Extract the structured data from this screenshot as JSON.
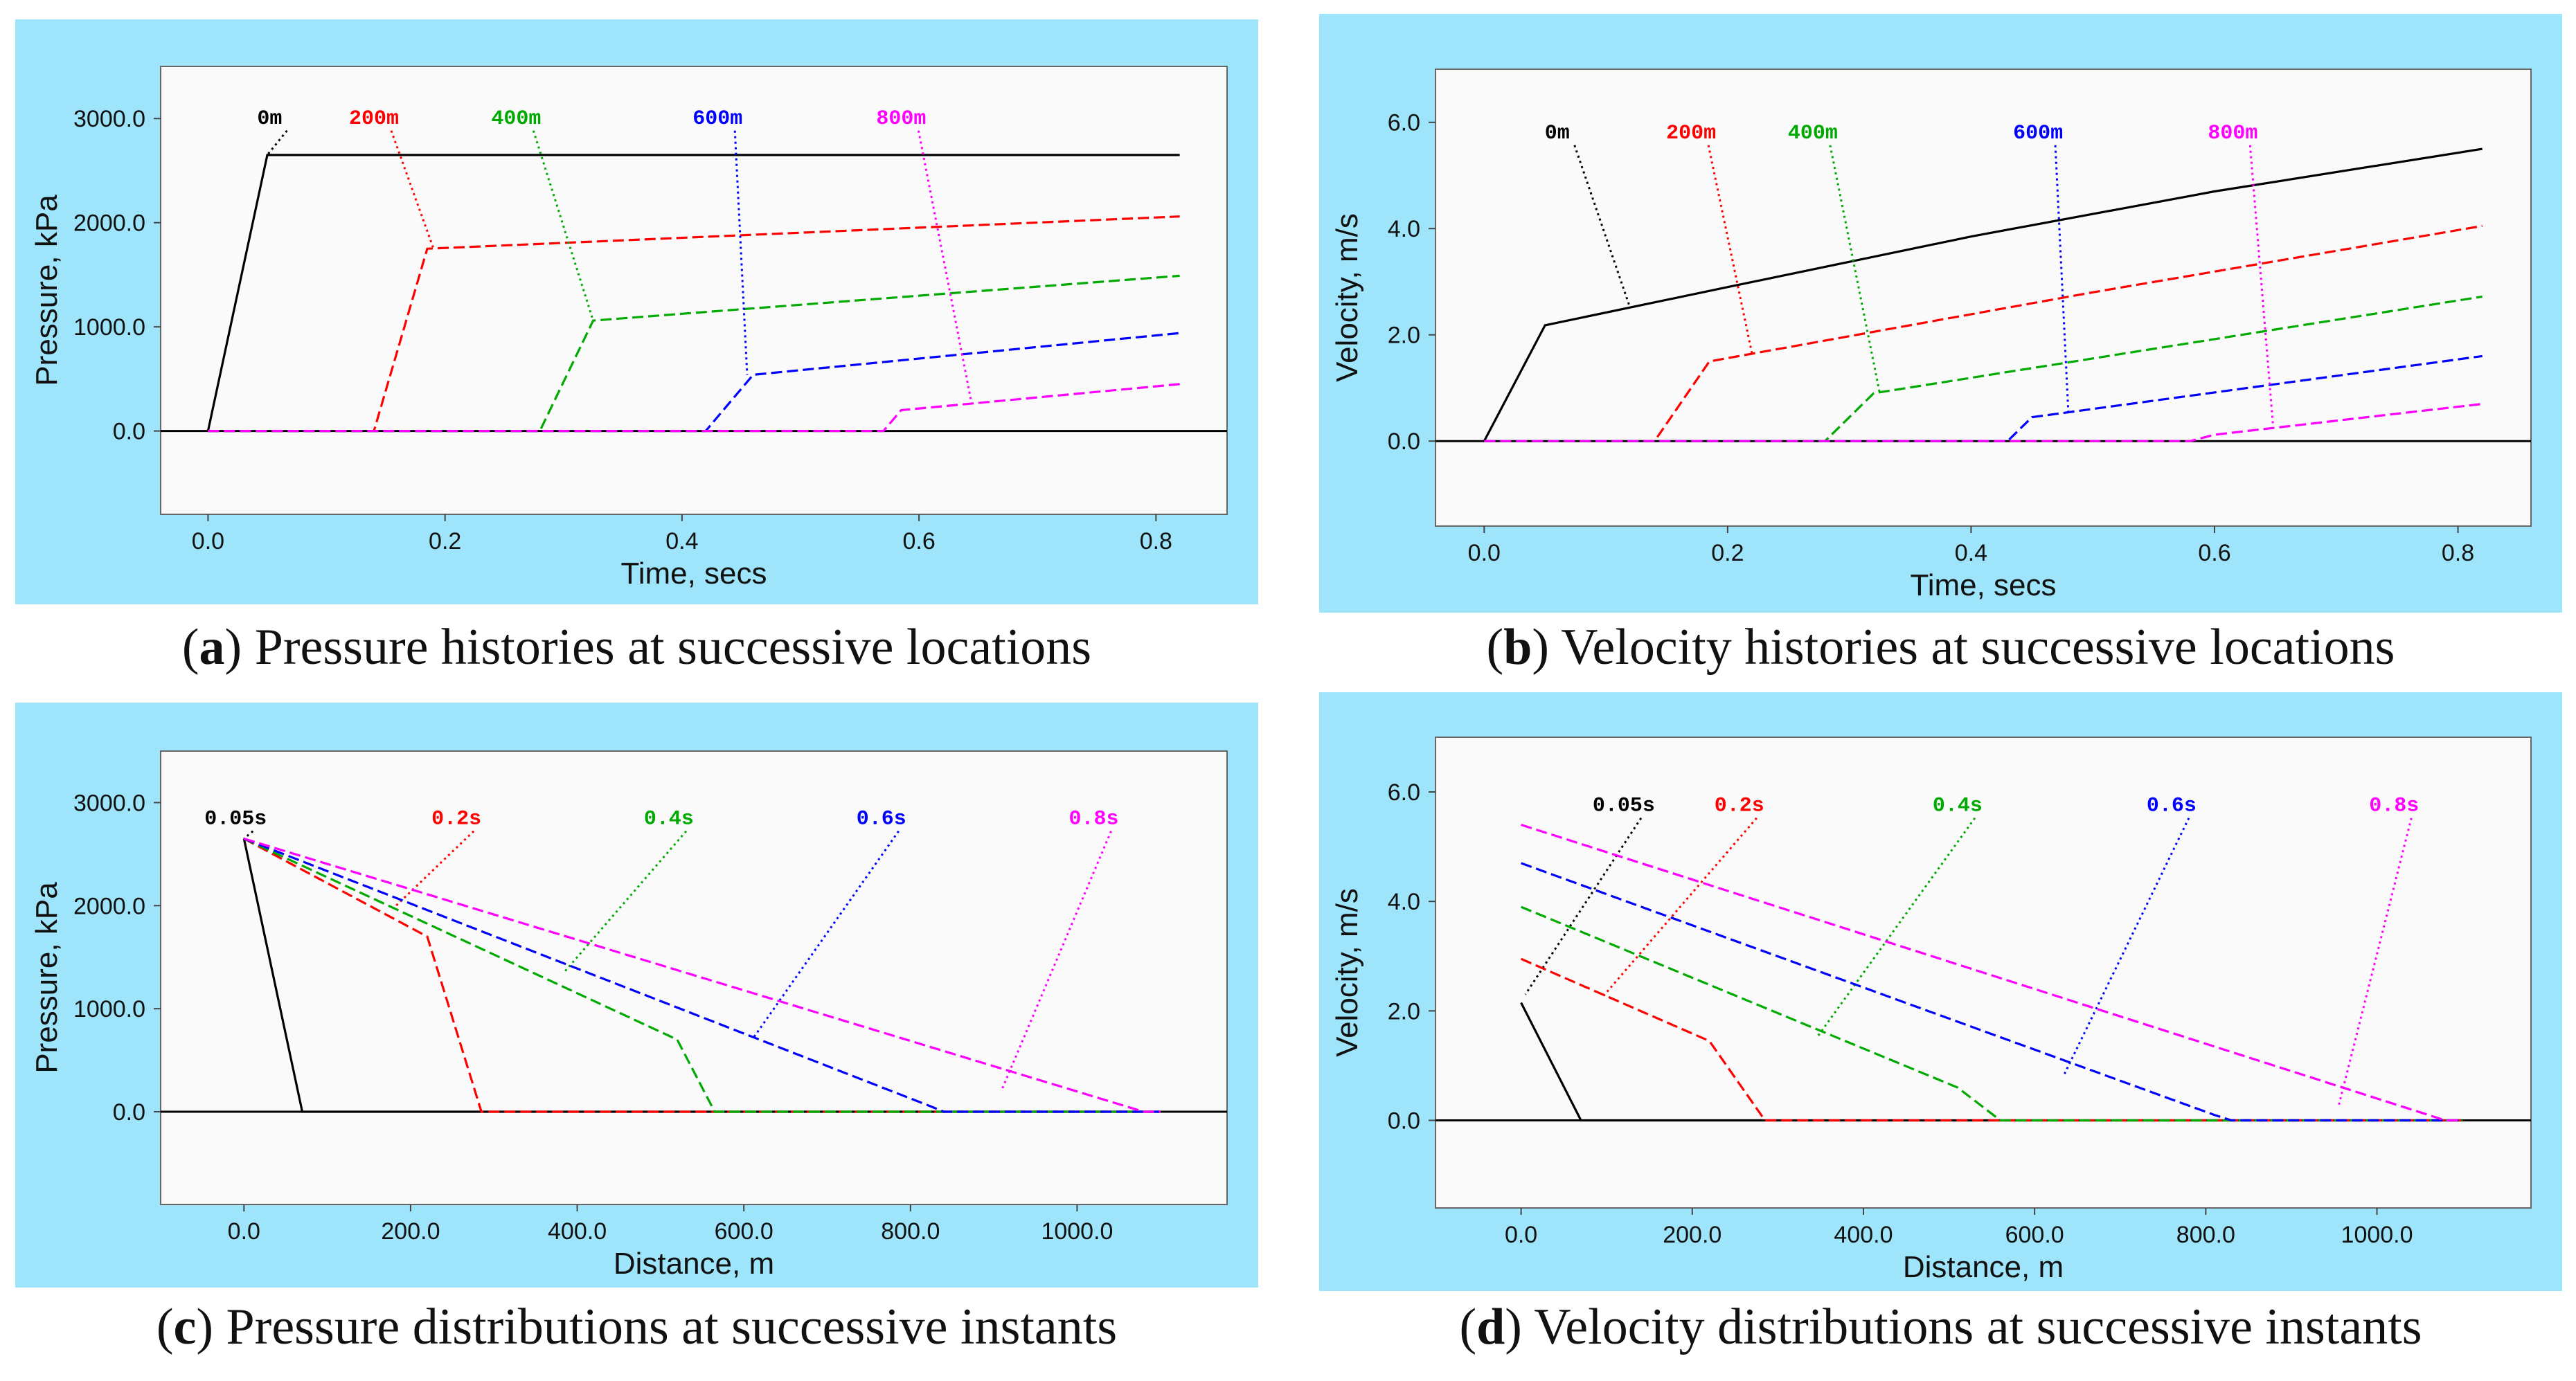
{
  "captions": [
    {
      "letter": "a",
      "text": "Pressure histories at successive locations"
    },
    {
      "letter": "b",
      "text": "Velocity histories at successive locations"
    },
    {
      "letter": "c",
      "text": "Pressure distributions at successive instants"
    },
    {
      "letter": "d",
      "text": "Velocity distributions at successive instants"
    }
  ],
  "chart_data": [
    {
      "id": "a",
      "type": "line",
      "title": "",
      "xlabel": "Time, secs",
      "ylabel": "Pressure, kPa",
      "xlim": [
        -0.04,
        0.86
      ],
      "ylim": [
        -800,
        3500
      ],
      "xticks": [
        0.0,
        0.2,
        0.4,
        0.6,
        0.8
      ],
      "xtick_labels": [
        "0.0",
        "0.2",
        "0.4",
        "0.6",
        "0.8"
      ],
      "yticks": [
        0,
        1000,
        2000,
        3000
      ],
      "ytick_labels": [
        "0.0",
        "1000.0",
        "2000.0",
        "3000.0"
      ],
      "grid": false,
      "legend": "none",
      "series": [
        {
          "name": "0m",
          "color": "#000000",
          "dash": "solid",
          "points": [
            [
              0.0,
              0
            ],
            [
              0.05,
              2650
            ],
            [
              0.82,
              2650
            ]
          ],
          "label_at": [
            0.052,
            2950
          ],
          "leader_to": [
            0.05,
            2650
          ]
        },
        {
          "name": "200m",
          "color": "#ff0000",
          "dash": "long",
          "points": [
            [
              0.0,
              0
            ],
            [
              0.14,
              0
            ],
            [
              0.185,
              1750
            ],
            [
              0.82,
              2060
            ]
          ],
          "label_at": [
            0.14,
            2950
          ],
          "leader_to": [
            0.19,
            1760
          ]
        },
        {
          "name": "400m",
          "color": "#00aa00",
          "dash": "long",
          "points": [
            [
              0.0,
              0
            ],
            [
              0.28,
              0
            ],
            [
              0.325,
              1060
            ],
            [
              0.82,
              1490
            ]
          ],
          "label_at": [
            0.26,
            2950
          ],
          "leader_to": [
            0.325,
            1060
          ]
        },
        {
          "name": "600m",
          "color": "#0000ff",
          "dash": "long",
          "points": [
            [
              0.0,
              0
            ],
            [
              0.42,
              0
            ],
            [
              0.46,
              540
            ],
            [
              0.82,
              940
            ]
          ],
          "label_at": [
            0.43,
            2950
          ],
          "leader_to": [
            0.455,
            540
          ]
        },
        {
          "name": "800m",
          "color": "#ff00ff",
          "dash": "long",
          "points": [
            [
              0.0,
              0
            ],
            [
              0.57,
              0
            ],
            [
              0.585,
              200
            ],
            [
              0.82,
              450
            ]
          ],
          "label_at": [
            0.585,
            2950
          ],
          "leader_to": [
            0.645,
            230
          ]
        }
      ]
    },
    {
      "id": "b",
      "type": "line",
      "title": "",
      "xlabel": "Time, secs",
      "ylabel": "Velocity, m/s",
      "xlim": [
        -0.04,
        0.86
      ],
      "ylim": [
        -1.6,
        7.0
      ],
      "xticks": [
        0.0,
        0.2,
        0.4,
        0.6,
        0.8
      ],
      "xtick_labels": [
        "0.0",
        "0.2",
        "0.4",
        "0.6",
        "0.8"
      ],
      "yticks": [
        0,
        2,
        4,
        6
      ],
      "ytick_labels": [
        "0.0",
        "2.0",
        "4.0",
        "6.0"
      ],
      "grid": false,
      "legend": "none",
      "series": [
        {
          "name": "0m",
          "color": "#000000",
          "dash": "solid",
          "points": [
            [
              0.0,
              0
            ],
            [
              0.05,
              2.18
            ],
            [
              0.2,
              2.9
            ],
            [
              0.4,
              3.85
            ],
            [
              0.6,
              4.7
            ],
            [
              0.82,
              5.5
            ]
          ],
          "label_at": [
            0.06,
            5.7
          ],
          "leader_to": [
            0.12,
            2.5
          ]
        },
        {
          "name": "200m",
          "color": "#ff0000",
          "dash": "long",
          "points": [
            [
              0.0,
              0
            ],
            [
              0.14,
              0
            ],
            [
              0.185,
              1.5
            ],
            [
              0.5,
              2.8
            ],
            [
              0.82,
              4.05
            ]
          ],
          "label_at": [
            0.17,
            5.7
          ],
          "leader_to": [
            0.22,
            1.65
          ]
        },
        {
          "name": "400m",
          "color": "#00aa00",
          "dash": "long",
          "points": [
            [
              0.0,
              0
            ],
            [
              0.28,
              0
            ],
            [
              0.32,
              0.9
            ],
            [
              0.82,
              2.72
            ]
          ],
          "label_at": [
            0.27,
            5.7
          ],
          "leader_to": [
            0.325,
            0.9
          ]
        },
        {
          "name": "600m",
          "color": "#0000ff",
          "dash": "long",
          "points": [
            [
              0.0,
              0
            ],
            [
              0.43,
              0
            ],
            [
              0.45,
              0.45
            ],
            [
              0.82,
              1.6
            ]
          ],
          "label_at": [
            0.455,
            5.7
          ],
          "leader_to": [
            0.48,
            0.5
          ]
        },
        {
          "name": "800m",
          "color": "#ff00ff",
          "dash": "long",
          "points": [
            [
              0.0,
              0
            ],
            [
              0.58,
              0
            ],
            [
              0.6,
              0.12
            ],
            [
              0.82,
              0.7
            ]
          ],
          "label_at": [
            0.615,
            5.7
          ],
          "leader_to": [
            0.648,
            0.32
          ]
        }
      ]
    },
    {
      "id": "c",
      "type": "line",
      "title": "",
      "xlabel": "Distance, m",
      "ylabel": "Pressure, kPa",
      "xlim": [
        -100,
        1180
      ],
      "ylim": [
        -900,
        3500
      ],
      "xticks": [
        0,
        200,
        400,
        600,
        800,
        1000
      ],
      "xtick_labels": [
        "0.0",
        "200.0",
        "400.0",
        "600.0",
        "800.0",
        "1000.0"
      ],
      "yticks": [
        0,
        1000,
        2000,
        3000
      ],
      "ytick_labels": [
        "0.0",
        "1000.0",
        "2000.0",
        "3000.0"
      ],
      "grid": false,
      "legend": "none",
      "series": [
        {
          "name": "0.05s",
          "color": "#000000",
          "dash": "solid",
          "points": [
            [
              0,
              2650
            ],
            [
              70,
              0
            ],
            [
              1100,
              0
            ]
          ],
          "label_at": [
            -10,
            2790
          ],
          "leader_to": [
            0,
            2650
          ]
        },
        {
          "name": "0.2s",
          "color": "#ff0000",
          "dash": "long",
          "points": [
            [
              0,
              2650
            ],
            [
              220,
              1700
            ],
            [
              285,
              0
            ],
            [
              1100,
              0
            ]
          ],
          "label_at": [
            255,
            2790
          ],
          "leader_to": [
            180,
            1980
          ]
        },
        {
          "name": "0.4s",
          "color": "#00aa00",
          "dash": "long",
          "points": [
            [
              0,
              2650
            ],
            [
              520,
              700
            ],
            [
              565,
              0
            ],
            [
              1100,
              0
            ]
          ],
          "label_at": [
            510,
            2790
          ],
          "leader_to": [
            385,
            1360
          ]
        },
        {
          "name": "0.6s",
          "color": "#0000ff",
          "dash": "long",
          "points": [
            [
              0,
              2650
            ],
            [
              825,
              50
            ],
            [
              840,
              0
            ],
            [
              1100,
              0
            ]
          ],
          "label_at": [
            765,
            2790
          ],
          "leader_to": [
            610,
            700
          ]
        },
        {
          "name": "0.8s",
          "color": "#ff00ff",
          "dash": "long",
          "points": [
            [
              0,
              2650
            ],
            [
              1080,
              0
            ],
            [
              1100,
              0
            ]
          ],
          "label_at": [
            1020,
            2790
          ],
          "leader_to": [
            910,
            220
          ]
        }
      ]
    },
    {
      "id": "d",
      "type": "line",
      "title": "",
      "xlabel": "Distance, m",
      "ylabel": "Velocity, m/s",
      "xlim": [
        -100,
        1180
      ],
      "ylim": [
        -1.6,
        7.0
      ],
      "xticks": [
        0,
        200,
        400,
        600,
        800,
        1000
      ],
      "xtick_labels": [
        "0.0",
        "200.0",
        "400.0",
        "600.0",
        "800.0",
        "1000.0"
      ],
      "yticks": [
        0,
        2,
        4,
        6
      ],
      "ytick_labels": [
        "0.0",
        "2.0",
        "4.0",
        "6.0"
      ],
      "grid": false,
      "legend": "none",
      "series": [
        {
          "name": "0.05s",
          "color": "#000000",
          "dash": "solid",
          "points": [
            [
              0,
              2.15
            ],
            [
              70,
              0
            ],
            [
              1100,
              0
            ]
          ],
          "label_at": [
            120,
            5.65
          ],
          "leader_to": [
            5,
            2.3
          ]
        },
        {
          "name": "0.2s",
          "color": "#ff0000",
          "dash": "long",
          "points": [
            [
              0,
              2.95
            ],
            [
              220,
              1.45
            ],
            [
              285,
              0
            ],
            [
              1100,
              0
            ]
          ],
          "label_at": [
            255,
            5.65
          ],
          "leader_to": [
            95,
            2.25
          ]
        },
        {
          "name": "0.4s",
          "color": "#00aa00",
          "dash": "long",
          "points": [
            [
              0,
              3.9
            ],
            [
              510,
              0.6
            ],
            [
              560,
              0
            ],
            [
              1100,
              0
            ]
          ],
          "label_at": [
            510,
            5.65
          ],
          "leader_to": [
            345,
            1.5
          ]
        },
        {
          "name": "0.6s",
          "color": "#0000ff",
          "dash": "long",
          "points": [
            [
              0,
              4.7
            ],
            [
              810,
              0.1
            ],
            [
              830,
              0
            ],
            [
              1100,
              0
            ]
          ],
          "label_at": [
            760,
            5.65
          ],
          "leader_to": [
            635,
            0.85
          ]
        },
        {
          "name": "0.8s",
          "color": "#ff00ff",
          "dash": "long",
          "points": [
            [
              0,
              5.4
            ],
            [
              1080,
              0
            ],
            [
              1100,
              0
            ]
          ],
          "label_at": [
            1020,
            5.65
          ],
          "leader_to": [
            955,
            0.25
          ]
        }
      ]
    }
  ]
}
